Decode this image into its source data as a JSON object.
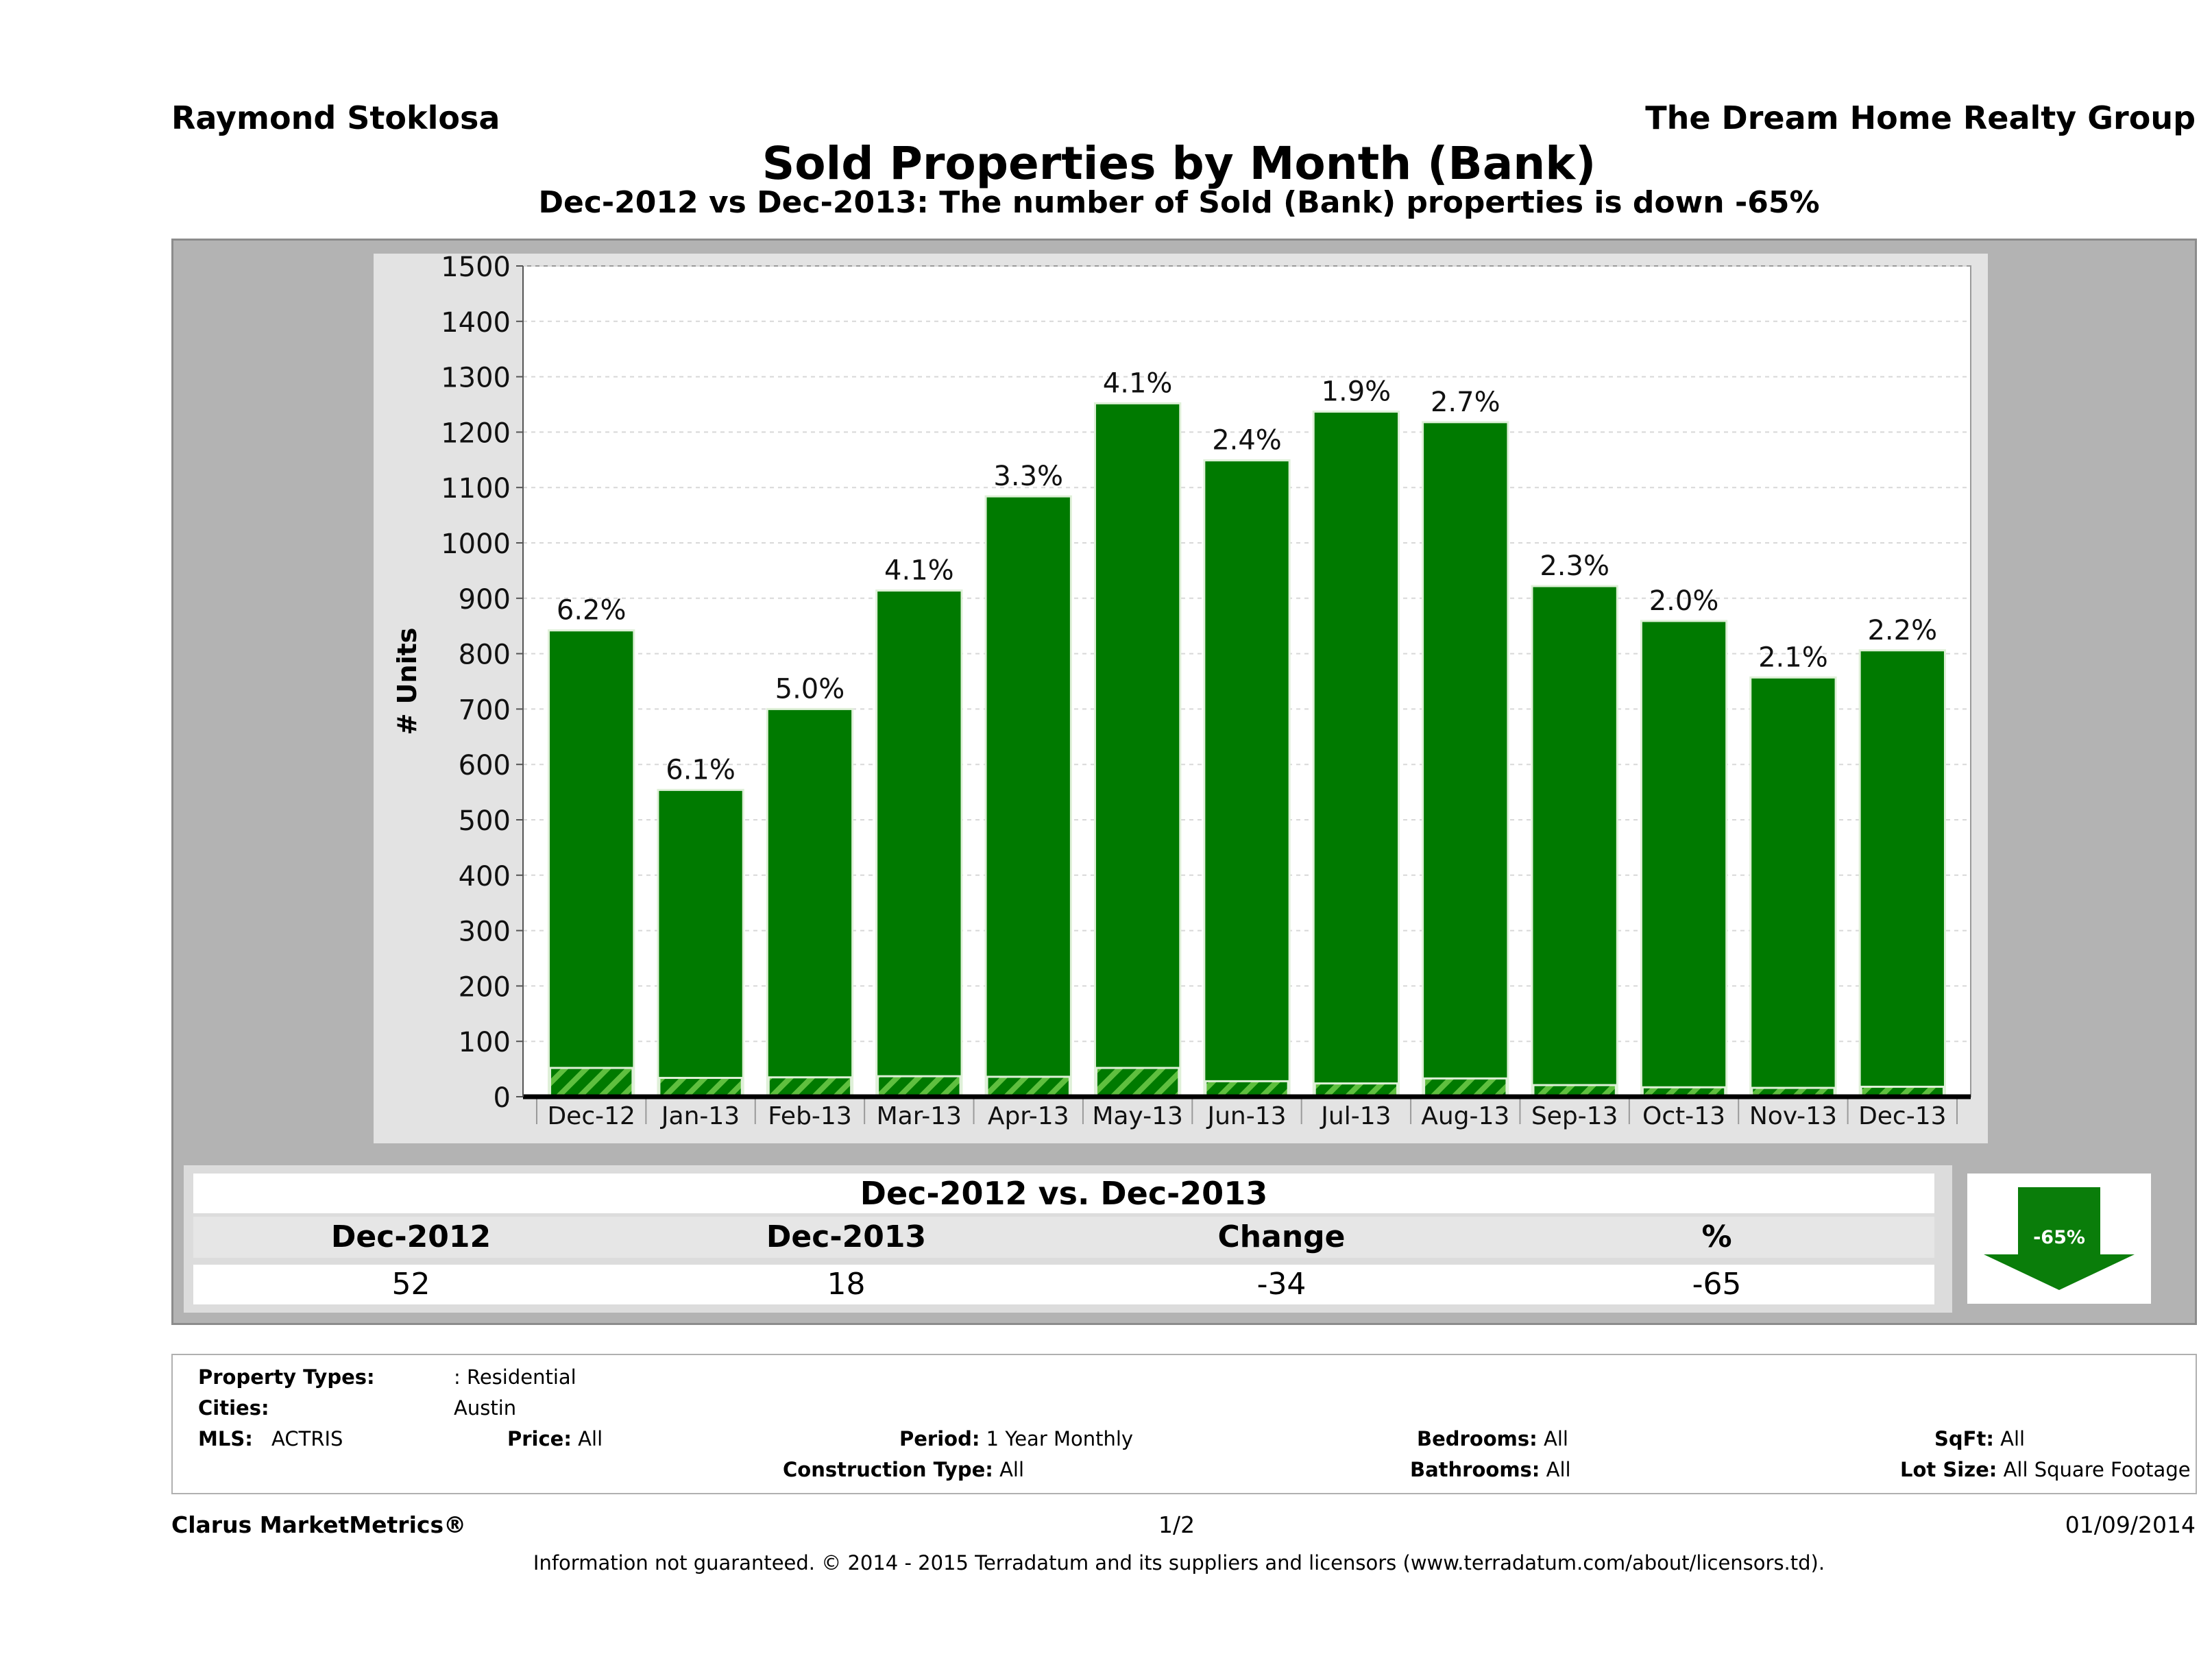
{
  "header": {
    "agent": "Raymond Stoklosa",
    "company": "The Dream Home Realty Group",
    "title": "Sold Properties by Month (Bank)",
    "subtitle": "Dec-2012 vs Dec-2013: The number of Sold (Bank)  properties is down -65%"
  },
  "colors": {
    "bar": "#007a00",
    "bar_outline": "#dff0d8",
    "hatch": "#5fbf3f",
    "frame": "#b3b3b3",
    "panel": "#e3e3e3",
    "arrow": "#0a7d0a"
  },
  "chart_data": {
    "type": "bar",
    "ylabel": "# Units",
    "xlabel": "",
    "ylim": [
      0,
      1500
    ],
    "yticks": [
      0,
      100,
      200,
      300,
      400,
      500,
      600,
      700,
      800,
      900,
      1000,
      1100,
      1200,
      1300,
      1400,
      1500
    ],
    "grid": true,
    "categories": [
      "Dec-12",
      "Jan-13",
      "Feb-13",
      "Mar-13",
      "Apr-13",
      "May-13",
      "Jun-13",
      "Jul-13",
      "Aug-13",
      "Sep-13",
      "Oct-13",
      "Nov-13",
      "Dec-13"
    ],
    "series": [
      {
        "values": [
          842,
          554,
          700,
          914,
          1084,
          1252,
          1149,
          1237,
          1218,
          922,
          859,
          757,
          806
        ]
      },
      {
        "values": [
          52,
          34,
          35,
          37,
          36,
          52,
          28,
          24,
          33,
          21,
          17,
          16,
          18
        ]
      }
    ],
    "data_labels": [
      "6.2%",
      "6.1%",
      "5.0%",
      "4.1%",
      "3.3%",
      "4.1%",
      "2.4%",
      "1.9%",
      "2.7%",
      "2.3%",
      "2.0%",
      "2.1%",
      "2.2%"
    ]
  },
  "comparison": {
    "title": "Dec-2012 vs. Dec-2013",
    "headers": [
      "Dec-2012",
      "Dec-2013",
      "Change",
      "%"
    ],
    "values": [
      "52",
      "18",
      "-34",
      "-65"
    ],
    "arrow_label": "-65%",
    "arrow_icon": "down-arrow-icon"
  },
  "criteria": {
    "property_types_label": "Property Types:",
    "property_types_value": ": Residential",
    "cities_label": "Cities:",
    "cities_value": "Austin",
    "mls_label": "MLS:",
    "mls_value": "ACTRIS",
    "price_label": "Price:",
    "price_value": "All",
    "period_label": "Period:",
    "period_value": "1 Year Monthly",
    "construction_label": "Construction Type:",
    "construction_value": "All",
    "bedrooms_label": "Bedrooms:",
    "bedrooms_value": "All",
    "bathrooms_label": "Bathrooms:",
    "bathrooms_value": "All",
    "sqft_label": "SqFt:",
    "sqft_value": "All",
    "lot_label": "Lot Size:",
    "lot_value": "All Square Footage"
  },
  "footer": {
    "brand": "Clarus MarketMetrics®",
    "page": "1/2",
    "date": "01/09/2014",
    "disclaimer": "Information not guaranteed. © 2014 - 2015 Terradatum and its suppliers and licensors (www.terradatum.com/about/licensors.td)."
  }
}
